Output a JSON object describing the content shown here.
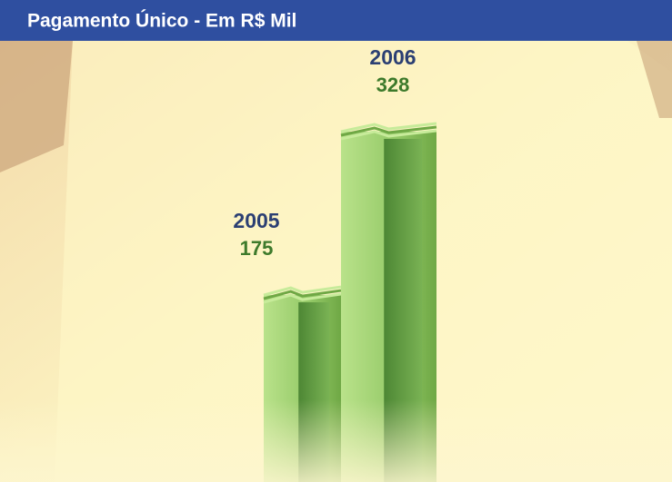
{
  "chart_data": {
    "type": "bar",
    "title": "Pagamento Único - Em R$ Mil",
    "categories": [
      "2005",
      "2006"
    ],
    "values": [
      175,
      328
    ],
    "color": "#9fd16e",
    "category_label_color": "#2b3f73",
    "value_label_color": "#3d7a2b"
  }
}
